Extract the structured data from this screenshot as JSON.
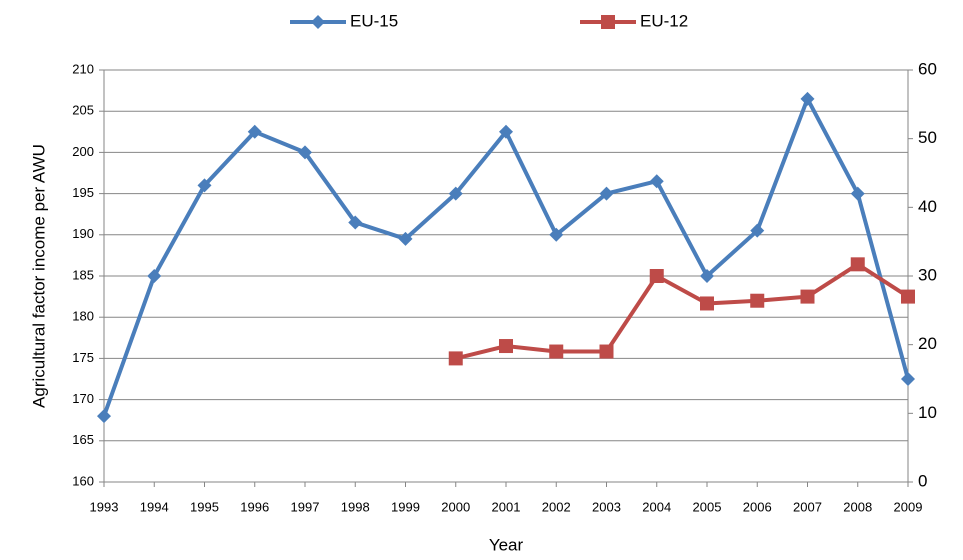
{
  "chart_data": {
    "type": "line",
    "categories": [
      "1993",
      "1994",
      "1995",
      "1996",
      "1997",
      "1998",
      "1999",
      "2000",
      "2001",
      "2002",
      "2003",
      "2004",
      "2005",
      "2006",
      "2007",
      "2008",
      "2009"
    ],
    "series": [
      {
        "name": "EU-15",
        "color": "#4a7ebb",
        "marker": "diamond",
        "values": [
          168,
          185,
          196,
          202.5,
          200,
          191.5,
          189.5,
          195,
          202.5,
          190,
          195,
          196.5,
          185,
          190.5,
          206.5,
          195,
          172.5
        ]
      },
      {
        "name": "EU-12",
        "color": "#be4b48",
        "marker": "square",
        "axis": "y2",
        "values": [
          null,
          null,
          null,
          null,
          null,
          null,
          null,
          18,
          19.8,
          19,
          19,
          30,
          26,
          26.4,
          27,
          31.7,
          27
        ]
      }
    ],
    "ylabel": "Agricultural  factor income per AWU",
    "xlabel": "Year",
    "ylim": [
      160,
      210
    ],
    "yticks": [
      160,
      165,
      170,
      175,
      180,
      185,
      190,
      195,
      200,
      205,
      210
    ],
    "y2lim": [
      0,
      60
    ],
    "y2ticks": [
      0,
      10,
      20,
      30,
      40,
      50,
      60
    ],
    "grid": true,
    "legend": "top"
  }
}
